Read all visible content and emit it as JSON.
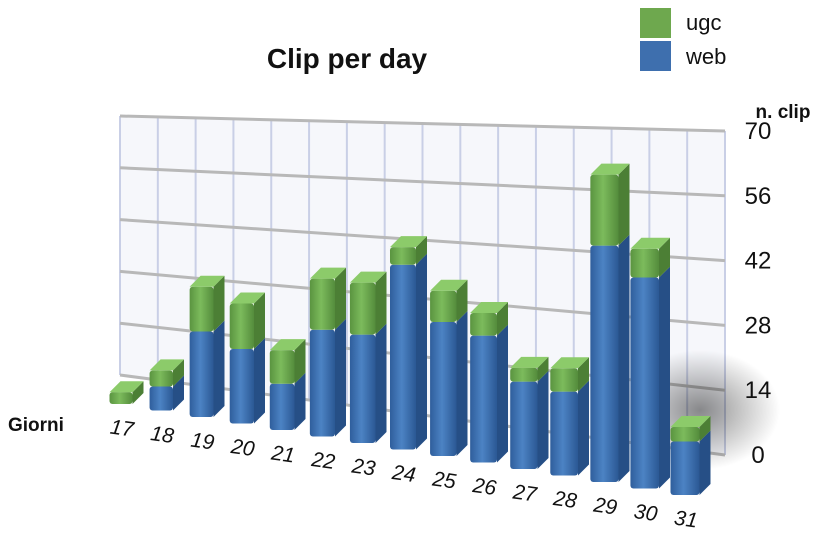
{
  "chart_data": {
    "type": "bar",
    "stacked": true,
    "three_d": true,
    "title": "Clip per day",
    "ylabel": "n. clip",
    "xlabel": "Giorni",
    "categories": [
      "17",
      "18",
      "19",
      "20",
      "21",
      "22",
      "23",
      "24",
      "25",
      "26",
      "27",
      "28",
      "29",
      "30",
      "31"
    ],
    "yticks": [
      "0",
      "14",
      "28",
      "42",
      "56",
      "70"
    ],
    "ylim": [
      0,
      70
    ],
    "grid": true,
    "legend_position": "top-right",
    "series": [
      {
        "name": "web",
        "color": "#3e6fae",
        "values": [
          0,
          6,
          21,
          18,
          11,
          25,
          25,
          42,
          30,
          28,
          19,
          18,
          50,
          44,
          11
        ]
      },
      {
        "name": "ugc",
        "color": "#6ea84e",
        "values": [
          3,
          4,
          11,
          11,
          8,
          12,
          12,
          4,
          7,
          5,
          3,
          5,
          15,
          6,
          3
        ]
      }
    ]
  }
}
